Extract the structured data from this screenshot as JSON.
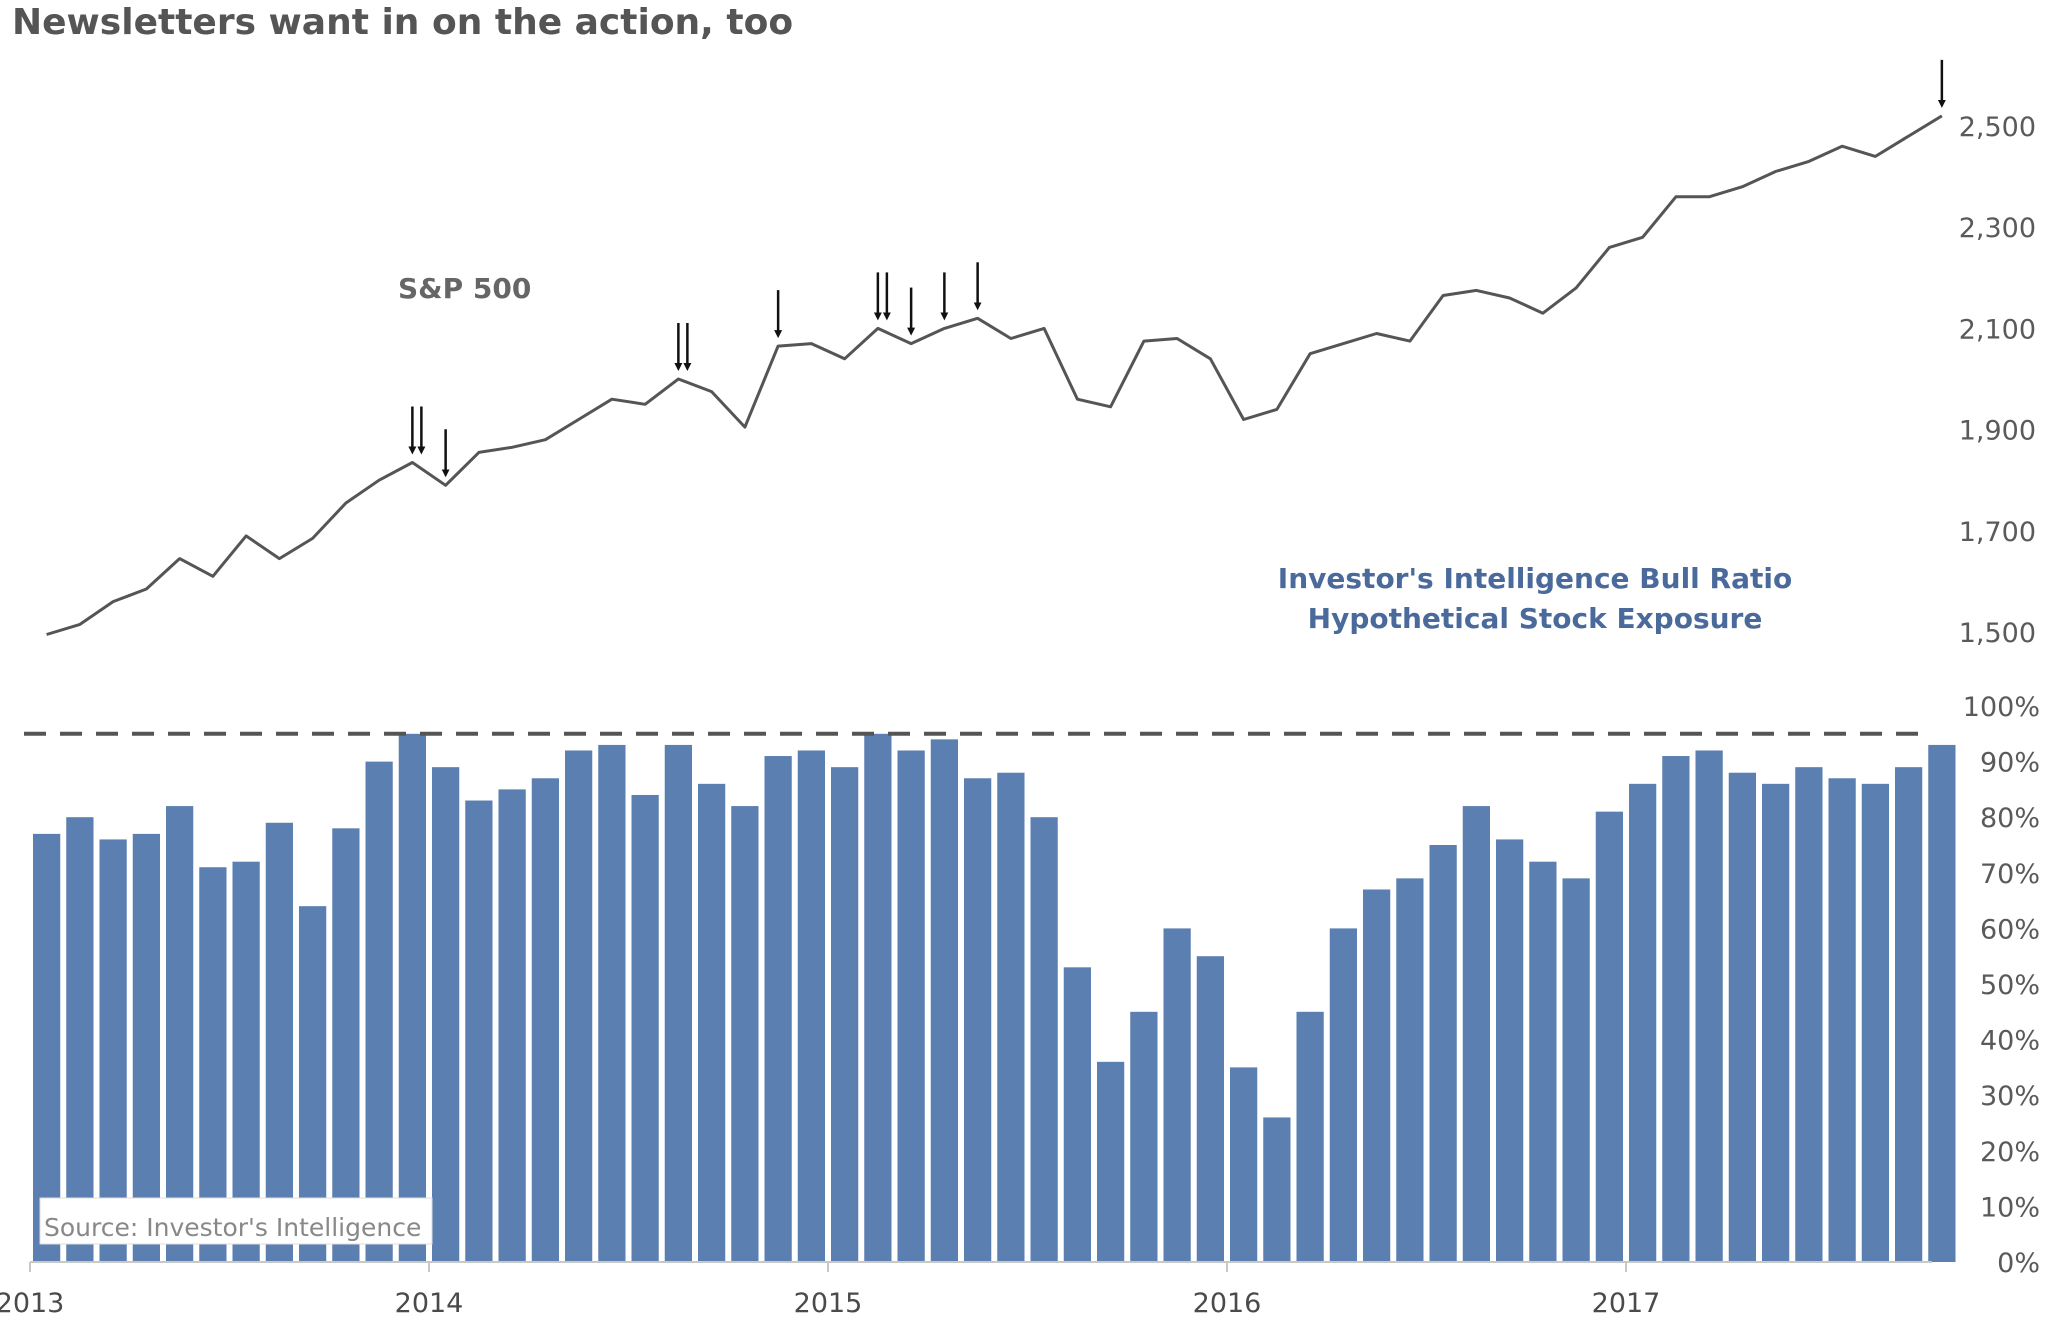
{
  "title": "Newsletters want in on the action, too",
  "chart_data": {
    "type": "line+bar",
    "title": "Newsletters want in on the action, too",
    "source": "Source: Investor's Intelligence",
    "x_tick_labels": [
      "2013",
      "2014",
      "2015",
      "2016",
      "2017"
    ],
    "x_range": [
      "2013-01-01",
      "2017-10-31"
    ],
    "series": [
      {
        "name": "S&P 500",
        "type": "line",
        "color": "#555555",
        "axis": "right-top",
        "ylim": [
          1500,
          2500
        ],
        "yticks": [
          "1,500",
          "1,700",
          "1,900",
          "2,100",
          "2,300",
          "2,500"
        ],
        "x": [
          "2013-01",
          "2013-02",
          "2013-03",
          "2013-04",
          "2013-05",
          "2013-06",
          "2013-07",
          "2013-08",
          "2013-09",
          "2013-10",
          "2013-11",
          "2013-12",
          "2014-01",
          "2014-02",
          "2014-03",
          "2014-04",
          "2014-05",
          "2014-06",
          "2014-07",
          "2014-08",
          "2014-09",
          "2014-10",
          "2014-11",
          "2014-12",
          "2015-01",
          "2015-02",
          "2015-03",
          "2015-04",
          "2015-05",
          "2015-06",
          "2015-07",
          "2015-08",
          "2015-09",
          "2015-10",
          "2015-11",
          "2015-12",
          "2016-01",
          "2016-02",
          "2016-03",
          "2016-04",
          "2016-05",
          "2016-06",
          "2016-07",
          "2016-08",
          "2016-09",
          "2016-10",
          "2016-11",
          "2016-12",
          "2017-01",
          "2017-02",
          "2017-03",
          "2017-04",
          "2017-05",
          "2017-06",
          "2017-07",
          "2017-08",
          "2017-09",
          "2017-10"
        ],
        "values": [
          1495,
          1515,
          1560,
          1585,
          1645,
          1610,
          1690,
          1645,
          1685,
          1755,
          1800,
          1835,
          1790,
          1855,
          1865,
          1880,
          1920,
          1960,
          1950,
          2000,
          1975,
          1905,
          2065,
          2070,
          2040,
          2100,
          2070,
          2100,
          2120,
          2080,
          2100,
          1960,
          1945,
          2075,
          2080,
          2040,
          1920,
          1940,
          2050,
          2070,
          2090,
          2075,
          2165,
          2175,
          2160,
          2130,
          2180,
          2260,
          2280,
          2360,
          2360,
          2380,
          2410,
          2430,
          2460,
          2440,
          2480,
          2520
        ]
      },
      {
        "name": "Investor's Intelligence Bull Ratio Hypothetical Stock Exposure",
        "type": "bar",
        "color": "#5b7fb0",
        "axis": "right-bottom",
        "ylim": [
          0,
          100
        ],
        "yticks": [
          "0%",
          "10%",
          "20%",
          "30%",
          "40%",
          "50%",
          "60%",
          "70%",
          "80%",
          "90%",
          "100%"
        ],
        "threshold": 95,
        "x": [
          "2013-01",
          "2013-02",
          "2013-03",
          "2013-04",
          "2013-05",
          "2013-06",
          "2013-07",
          "2013-08",
          "2013-09",
          "2013-10",
          "2013-11",
          "2013-12",
          "2014-01",
          "2014-02",
          "2014-03",
          "2014-04",
          "2014-05",
          "2014-06",
          "2014-07",
          "2014-08",
          "2014-09",
          "2014-10",
          "2014-11",
          "2014-12",
          "2015-01",
          "2015-02",
          "2015-03",
          "2015-04",
          "2015-05",
          "2015-06",
          "2015-07",
          "2015-08",
          "2015-09",
          "2015-10",
          "2015-11",
          "2015-12",
          "2016-01",
          "2016-02",
          "2016-03",
          "2016-04",
          "2016-05",
          "2016-06",
          "2016-07",
          "2016-08",
          "2016-09",
          "2016-10",
          "2016-11",
          "2016-12",
          "2017-01",
          "2017-02",
          "2017-03",
          "2017-04",
          "2017-05",
          "2017-06",
          "2017-07",
          "2017-08",
          "2017-09",
          "2017-10"
        ],
        "values": [
          77,
          80,
          76,
          77,
          82,
          71,
          72,
          79,
          64,
          78,
          90,
          95,
          89,
          83,
          85,
          87,
          92,
          93,
          84,
          93,
          86,
          82,
          91,
          92,
          89,
          95,
          92,
          94,
          87,
          88,
          80,
          53,
          36,
          45,
          60,
          55,
          35,
          26,
          45,
          60,
          67,
          69,
          75,
          82,
          76,
          72,
          69,
          81,
          86,
          91,
          92,
          88,
          86,
          89,
          87,
          86,
          89,
          93
        ]
      }
    ],
    "arrows_at": [
      "2013-12",
      "2013-12",
      "2014-01",
      "2014-08",
      "2014-08",
      "2014-11",
      "2015-02",
      "2015-02",
      "2015-03",
      "2015-04",
      "2015-05",
      "2017-10"
    ]
  }
}
